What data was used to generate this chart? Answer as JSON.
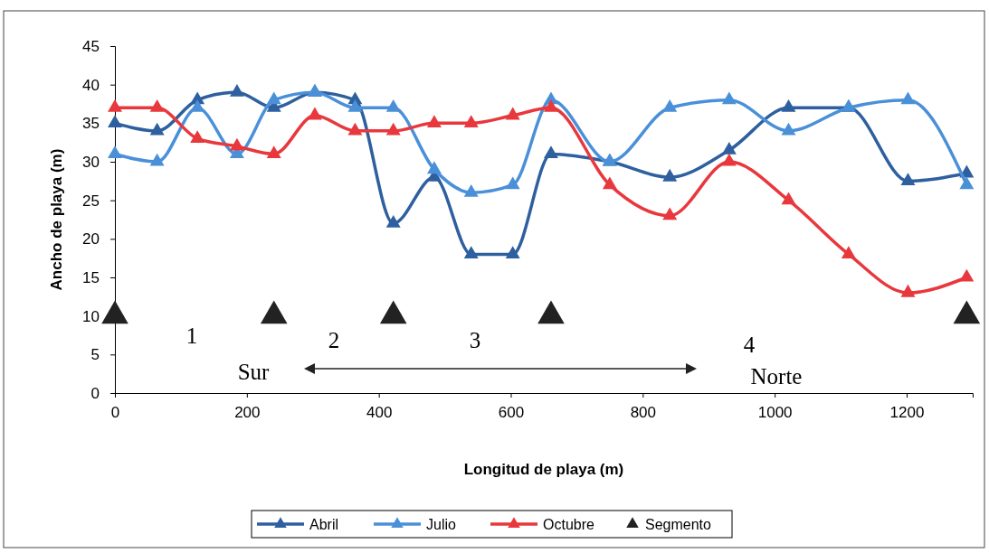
{
  "chart_data": {
    "type": "line",
    "xlabel": "Longitud de playa (m)",
    "ylabel": "Ancho de playa (m)",
    "x": [
      0,
      64,
      125,
      185,
      241,
      303,
      364,
      422,
      484,
      540,
      603,
      661,
      750,
      841,
      931,
      1021,
      1112,
      1202,
      1291
    ],
    "xlim": [
      0,
      1300
    ],
    "xticks": [
      0,
      200,
      400,
      600,
      800,
      1000,
      1200
    ],
    "ylim": [
      0,
      45
    ],
    "yticks": [
      0,
      5,
      10,
      15,
      20,
      25,
      30,
      35,
      40,
      45
    ],
    "grid": false,
    "legend": "bottom",
    "marker": "triangle",
    "line_style": "solid",
    "series": [
      {
        "name": "Abril",
        "color": "#2e5f9e",
        "values": [
          35,
          34,
          38,
          39,
          37,
          39,
          38,
          22,
          28,
          18,
          18,
          31,
          30,
          28,
          31.5,
          37,
          37,
          27.5,
          28.5
        ]
      },
      {
        "name": "Julio",
        "color": "#4a90d9",
        "values": [
          31,
          30,
          37,
          31,
          38,
          39,
          37,
          37,
          29,
          26,
          27,
          38,
          30,
          37,
          38,
          34,
          37,
          38,
          27
        ]
      },
      {
        "name": "Octubre",
        "color": "#e8383d",
        "values": [
          37,
          37,
          33,
          32,
          31,
          36,
          34,
          34,
          35,
          35,
          36,
          37,
          27,
          23,
          30,
          25,
          18,
          13,
          15
        ]
      },
      {
        "name": "Segmento",
        "type": "scatter",
        "color": "#222222",
        "x": [
          0,
          241,
          422,
          661,
          1291
        ],
        "values": [
          10,
          10,
          10,
          10,
          10
        ]
      }
    ],
    "annotations": [
      "1",
      "2",
      "3",
      "4",
      "Sur",
      "Norte"
    ]
  }
}
